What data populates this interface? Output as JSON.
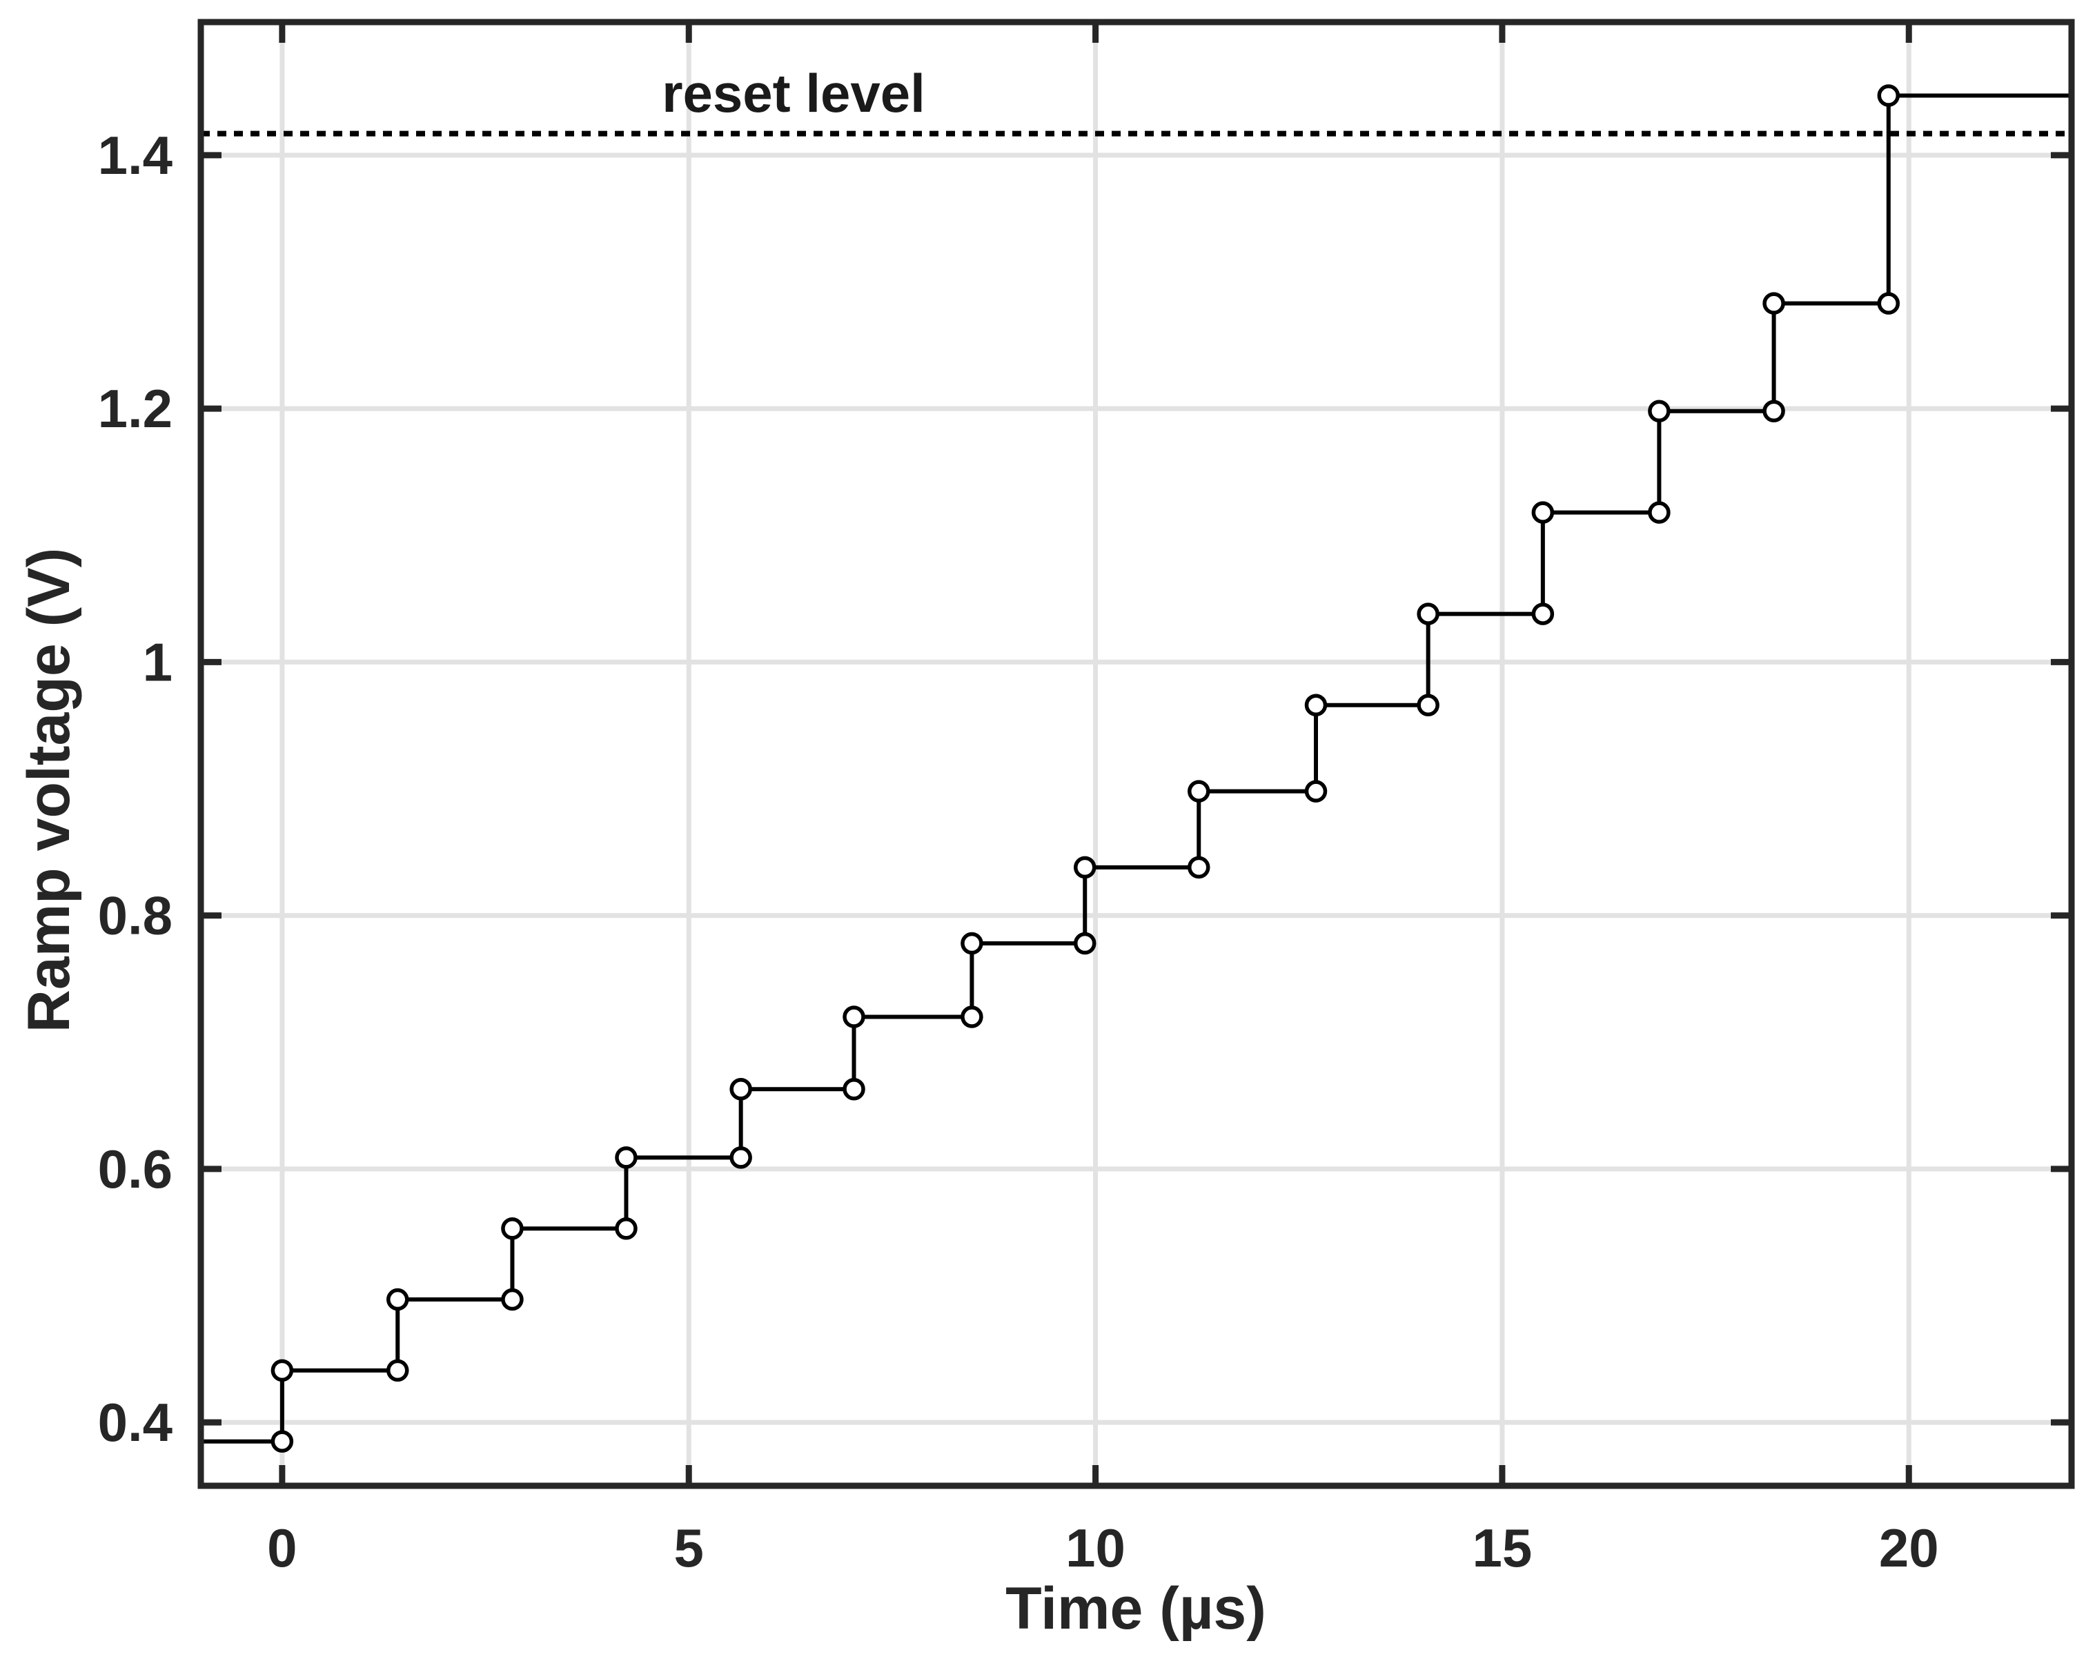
{
  "chart_data": {
    "type": "line",
    "subtype": "staircase-step",
    "title": "",
    "xlabel": "Time (µs)",
    "ylabel": "Ramp voltage (V)",
    "xlim": [
      -1,
      22
    ],
    "ylim": [
      0.35,
      1.505
    ],
    "xticks": [
      0,
      5,
      10,
      15,
      20
    ],
    "yticks": [
      0.4,
      0.6,
      0.8,
      1,
      1.2,
      1.4
    ],
    "grid": true,
    "legend": "none",
    "step_times_us": [
      0,
      1.42,
      2.83,
      4.23,
      5.64,
      7.03,
      8.48,
      9.87,
      11.27,
      12.71,
      14.09,
      15.5,
      16.93,
      18.34,
      19.75
    ],
    "levels_v": [
      0.385,
      0.441,
      0.497,
      0.553,
      0.609,
      0.663,
      0.72,
      0.778,
      0.838,
      0.898,
      0.966,
      1.038,
      1.118,
      1.198,
      1.283,
      1.447
    ],
    "reset_level": {
      "label": "reset level",
      "value": 1.417,
      "line_style": "dotted"
    },
    "colors": {
      "series": "#000000",
      "axes": "#262626",
      "grid": "#e2e2e2",
      "marker_fill": "#ffffff",
      "background": "#ffffff"
    },
    "marker": "open-circle"
  }
}
